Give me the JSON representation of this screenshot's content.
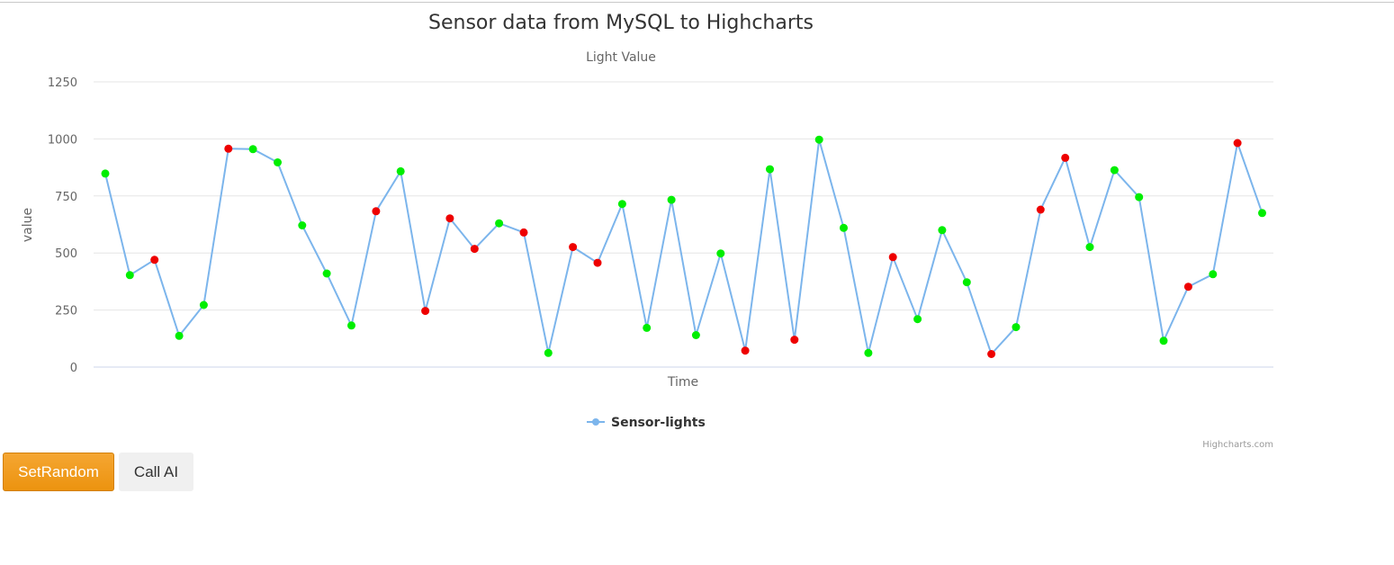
{
  "chart_data": {
    "type": "line",
    "title": "Sensor data from MySQL to Highcharts",
    "subtitle": "Light Value",
    "xlabel": "Time",
    "ylabel": "value",
    "ylim": [
      0,
      1250
    ],
    "yticks": [
      0,
      250,
      500,
      750,
      1000,
      1250
    ],
    "grid": true,
    "legend_placement": "bottom-center",
    "series": [
      {
        "name": "Sensor-lights",
        "line_color": "#7cb5ec",
        "values": [
          848,
          403,
          470,
          137,
          272,
          957,
          955,
          897,
          621,
          410,
          182,
          683,
          858,
          246,
          652,
          518,
          630,
          590,
          62,
          526,
          457,
          715,
          172,
          733,
          140,
          498,
          72,
          867,
          120,
          997,
          610,
          62,
          482,
          210,
          600,
          372,
          57,
          175,
          690,
          917,
          526,
          863,
          745,
          115,
          352,
          407,
          982,
          675
        ],
        "point_colors": [
          "green",
          "green",
          "red",
          "green",
          "green",
          "red",
          "green",
          "green",
          "green",
          "green",
          "green",
          "red",
          "green",
          "red",
          "red",
          "red",
          "green",
          "red",
          "green",
          "red",
          "red",
          "green",
          "green",
          "green",
          "green",
          "green",
          "red",
          "green",
          "red",
          "green",
          "green",
          "green",
          "red",
          "green",
          "green",
          "green",
          "red",
          "green",
          "red",
          "red",
          "green",
          "green",
          "green",
          "green",
          "red",
          "green",
          "red",
          "green"
        ]
      }
    ],
    "colors": {
      "green": "#00ee00",
      "red": "#ee0000"
    }
  },
  "credits": "Highcharts.com",
  "buttons": {
    "set_random": "SetRandom",
    "call_ai": "Call AI"
  }
}
